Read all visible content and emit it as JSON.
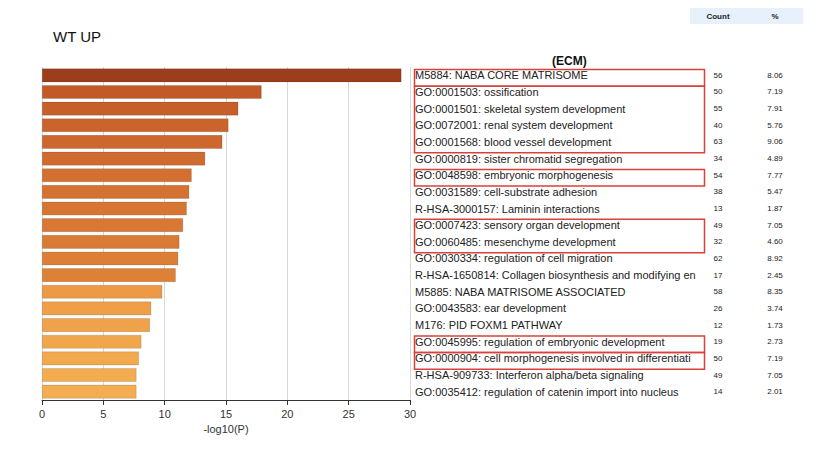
{
  "chart_data": {
    "type": "bar",
    "title": "WT UP",
    "orientation": "horizontal",
    "x_label": "-log10(P)",
    "annotation": "(ECM)",
    "categories": [
      "M5884: NABA CORE MATRISOME",
      "GO:0001503: ossification",
      "GO:0001501: skeletal system development",
      "GO:0072001: renal system development",
      "GO:0001568: blood vessel development",
      "GO:0000819: sister chromatid segregation",
      "GO:0048598: embryonic morphogenesis",
      "GO:0031589: cell-substrate adhesion",
      "R-HSA-3000157: Laminin interactions",
      "GO:0007423: sensory organ development",
      "GO:0060485: mesenchyme development",
      "GO:0030334: regulation of cell migration",
      "R-HSA-1650814: Collagen biosynthesis and modifying en",
      "M5885: NABA MATRISOME ASSOCIATED",
      "GO:0043583: ear development",
      "M176: PID FOXM1 PATHWAY",
      "GO:0045995: regulation of embryonic development",
      "GO:0000904: cell morphogenesis involved in differentiati",
      "R-HSA-909733: Interferon alpha/beta signaling",
      "GO:0035412: regulation of catenin import into nucleus"
    ],
    "values": [
      29.3,
      17.9,
      16.0,
      15.2,
      14.7,
      13.3,
      12.2,
      12.0,
      11.8,
      11.5,
      11.2,
      11.1,
      10.9,
      9.8,
      8.9,
      8.8,
      8.1,
      7.9,
      7.7,
      7.7
    ],
    "colors": [
      "#9c3d1b",
      "#c25a28",
      "#c75f2a",
      "#cb632c",
      "#cd672d",
      "#d06b2f",
      "#d46f30",
      "#d57231",
      "#d77532",
      "#d97834",
      "#da7b35",
      "#dc7e36",
      "#dd8137",
      "#ec9a45",
      "#ee9f48",
      "#efa24a",
      "#f1a64c",
      "#f2a94e",
      "#f3ac50",
      "#f4ae51"
    ],
    "column_headers": [
      "Count",
      "%"
    ],
    "count": [
      56,
      50,
      55,
      40,
      63,
      34,
      54,
      38,
      13,
      49,
      32,
      62,
      17,
      58,
      26,
      12,
      19,
      50,
      49,
      14
    ],
    "percent": [
      8.06,
      7.19,
      7.91,
      5.76,
      9.06,
      4.89,
      7.77,
      5.47,
      1.87,
      7.05,
      4.6,
      8.92,
      2.45,
      8.35,
      3.74,
      1.73,
      2.73,
      7.19,
      7.05,
      2.01
    ],
    "percent_labels": [
      "8.06",
      "7.19",
      "7.91",
      "5.76",
      "9.06",
      "4.89",
      "7.77",
      "5.47",
      "1.87",
      "7.05",
      "4.60",
      "8.92",
      "2.45",
      "8.35",
      "3.74",
      "1.73",
      "2.73",
      "7.19",
      "7.05",
      "2.01"
    ],
    "highlight": [
      [
        "M5884: NABA CORE MATRISOME",
        "M5884: NABA CORE MATRISOME"
      ],
      [
        "GO:0001503: ossification",
        "GO:0001568: blood vessel development"
      ],
      [
        "GO:0048598: embryonic morphogenesis",
        "GO:0048598: embryonic morphogenesis"
      ],
      [
        "GO:0007423: sensory organ development",
        "GO:0060485: mesenchyme development"
      ],
      [
        "GO:0045995: regulation of embryonic development",
        "GO:0045995: regulation of embryonic development"
      ],
      [
        "GO:0000904: cell morphogenesis involved in differentiati",
        "GO:0000904: cell morphogenesis involved in differentiati"
      ]
    ],
    "xlim": [
      0,
      30
    ],
    "xticks": [
      0,
      5,
      10,
      15,
      20,
      25,
      30
    ],
    "grid": true
  }
}
